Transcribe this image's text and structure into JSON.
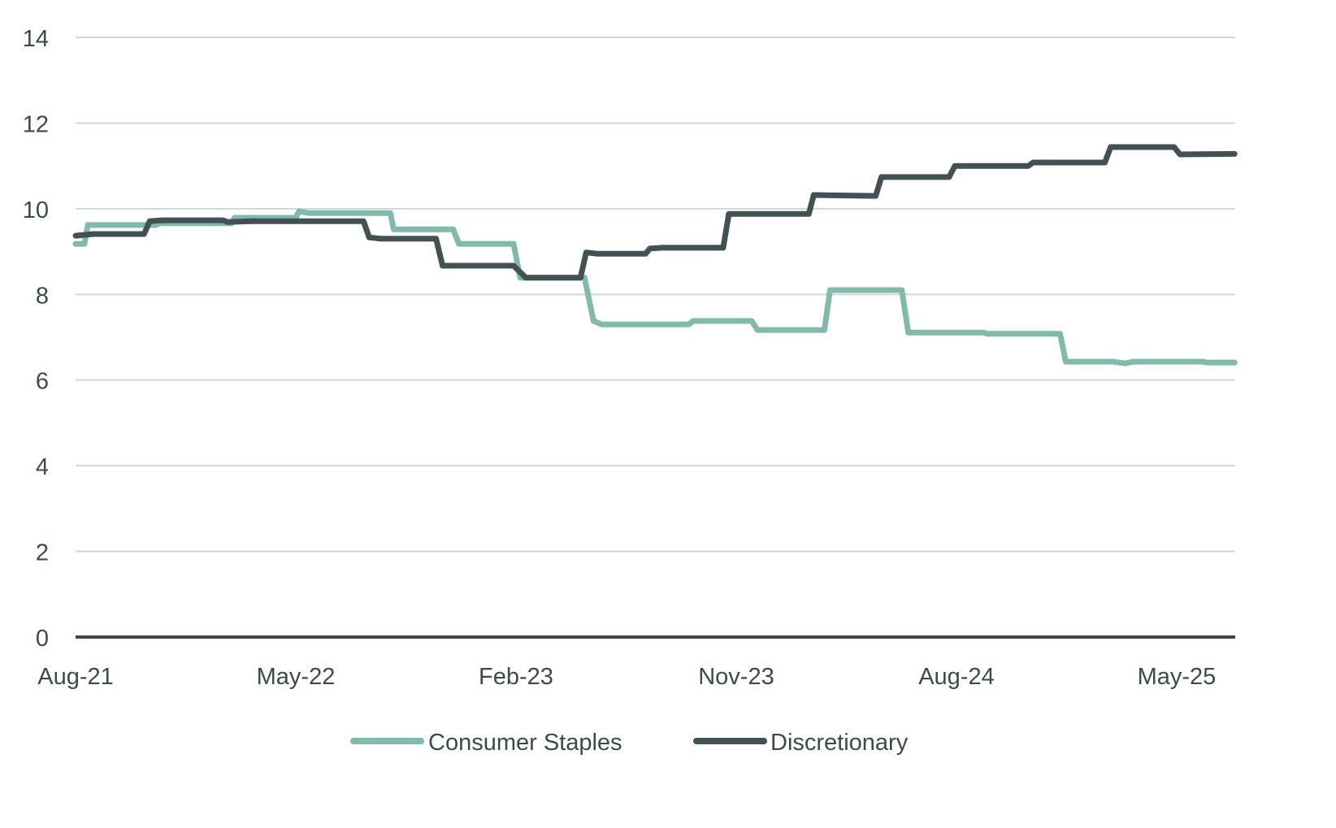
{
  "chart_data": {
    "type": "line",
    "title": "",
    "xlabel": "",
    "ylabel": "",
    "ylim": [
      0,
      14
    ],
    "yticks": [
      "0",
      "2",
      "4",
      "6",
      "8",
      "10",
      "12",
      "14"
    ],
    "xticks": [
      {
        "label": "Aug-21",
        "date": "2021-08-01"
      },
      {
        "label": "May-22",
        "date": "2022-05-01"
      },
      {
        "label": "Feb-23",
        "date": "2023-02-01"
      },
      {
        "label": "Nov-23",
        "date": "2023-11-01"
      },
      {
        "label": "Aug-24",
        "date": "2024-08-01"
      },
      {
        "label": "May-25",
        "date": "2025-05-01"
      }
    ],
    "xlim": [
      "2021-08-01",
      "2025-07-12"
    ],
    "grid": true,
    "legend_position": "bottom",
    "series": [
      {
        "name": "Consumer Staples",
        "color": "#80baab",
        "points": [
          [
            "2021-08-01",
            9.18
          ],
          [
            "2021-08-12",
            9.18
          ],
          [
            "2021-08-16",
            9.62
          ],
          [
            "2021-11-10",
            9.62
          ],
          [
            "2021-11-14",
            9.66
          ],
          [
            "2022-02-12",
            9.66
          ],
          [
            "2022-02-16",
            9.79
          ],
          [
            "2022-05-01",
            9.79
          ],
          [
            "2022-05-05",
            9.94
          ],
          [
            "2022-05-17",
            9.9
          ],
          [
            "2022-08-27",
            9.9
          ],
          [
            "2022-09-01",
            9.52
          ],
          [
            "2022-11-14",
            9.52
          ],
          [
            "2022-11-21",
            9.18
          ],
          [
            "2023-01-28",
            9.18
          ],
          [
            "2023-02-06",
            8.39
          ],
          [
            "2023-04-25",
            8.39
          ],
          [
            "2023-05-06",
            7.38
          ],
          [
            "2023-05-16",
            7.3
          ],
          [
            "2023-09-03",
            7.3
          ],
          [
            "2023-09-08",
            7.38
          ],
          [
            "2023-11-20",
            7.38
          ],
          [
            "2023-11-27",
            7.17
          ],
          [
            "2024-02-19",
            7.17
          ],
          [
            "2024-02-26",
            8.1
          ],
          [
            "2024-05-24",
            8.1
          ],
          [
            "2024-06-02",
            7.11
          ],
          [
            "2024-09-04",
            7.11
          ],
          [
            "2024-09-09",
            7.08
          ],
          [
            "2024-12-08",
            7.08
          ],
          [
            "2024-12-15",
            6.43
          ],
          [
            "2025-02-13",
            6.43
          ],
          [
            "2025-02-28",
            6.39
          ],
          [
            "2025-03-08",
            6.43
          ],
          [
            "2025-06-03",
            6.43
          ],
          [
            "2025-06-08",
            6.41
          ],
          [
            "2025-07-12",
            6.41
          ]
        ]
      },
      {
        "name": "Discretionary",
        "color": "#415154",
        "points": [
          [
            "2021-08-01",
            9.37
          ],
          [
            "2021-08-23",
            9.41
          ],
          [
            "2021-10-25",
            9.41
          ],
          [
            "2021-11-02",
            9.71
          ],
          [
            "2021-11-17",
            9.73
          ],
          [
            "2022-02-02",
            9.73
          ],
          [
            "2022-02-07",
            9.69
          ],
          [
            "2022-03-07",
            9.71
          ],
          [
            "2022-07-24",
            9.71
          ],
          [
            "2022-08-01",
            9.33
          ],
          [
            "2022-08-16",
            9.3
          ],
          [
            "2022-10-23",
            9.3
          ],
          [
            "2022-11-01",
            8.67
          ],
          [
            "2023-01-28",
            8.67
          ],
          [
            "2023-02-13",
            8.39
          ],
          [
            "2023-04-20",
            8.39
          ],
          [
            "2023-04-27",
            8.98
          ],
          [
            "2023-05-10",
            8.95
          ],
          [
            "2023-07-10",
            8.95
          ],
          [
            "2023-07-15",
            9.07
          ],
          [
            "2023-07-30",
            9.09
          ],
          [
            "2023-10-15",
            9.09
          ],
          [
            "2023-10-22",
            9.88
          ],
          [
            "2024-01-30",
            9.88
          ],
          [
            "2024-02-06",
            10.32
          ],
          [
            "2024-04-22",
            10.3
          ],
          [
            "2024-04-29",
            10.74
          ],
          [
            "2024-07-22",
            10.74
          ],
          [
            "2024-07-29",
            11.0
          ],
          [
            "2024-10-29",
            11.0
          ],
          [
            "2024-11-05",
            11.08
          ],
          [
            "2025-02-03",
            11.08
          ],
          [
            "2025-02-10",
            11.44
          ],
          [
            "2025-04-28",
            11.44
          ],
          [
            "2025-05-05",
            11.27
          ],
          [
            "2025-07-12",
            11.28
          ]
        ]
      }
    ]
  }
}
